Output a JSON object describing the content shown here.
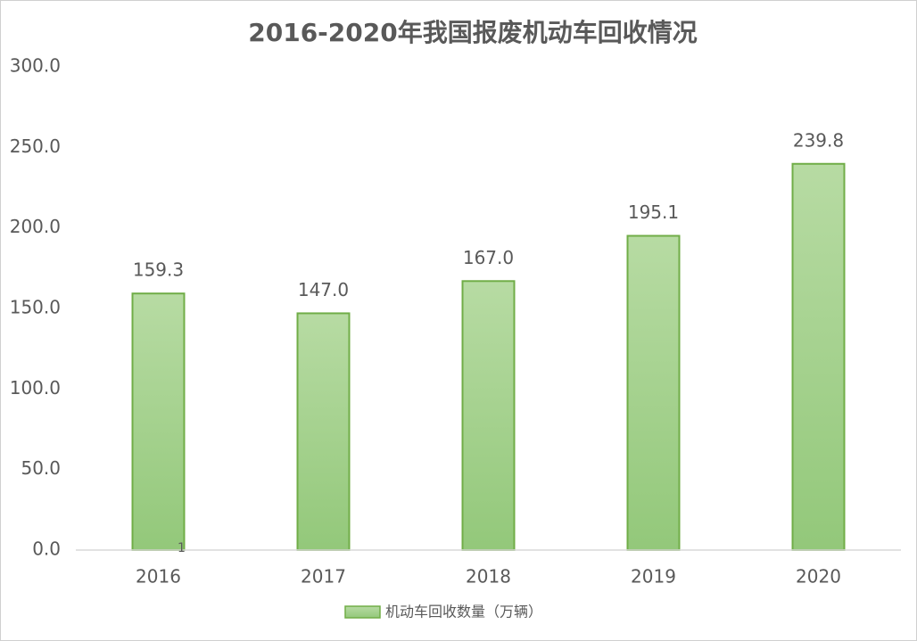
{
  "chart_data": {
    "type": "bar",
    "title": "2016-2020年我国报废机动车回收情况",
    "categories": [
      "2016",
      "2017",
      "2018",
      "2019",
      "2020"
    ],
    "series": [
      {
        "name": "机动车回收数量（万辆）",
        "color": "#a9d18e",
        "edge_color": "#70ad47",
        "values": [
          159.3,
          147.0,
          167.0,
          195.1,
          239.8
        ],
        "value_labels": [
          "159.3",
          "147.0",
          "167.0",
          "195.1",
          "239.8"
        ]
      }
    ],
    "ylim": [
      0,
      300
    ],
    "yticks": [
      {
        "value": 0,
        "label": "0.0"
      },
      {
        "value": 50,
        "label": "50.0"
      },
      {
        "value": 100,
        "label": "100.0"
      },
      {
        "value": 150,
        "label": "150.0"
      },
      {
        "value": 200,
        "label": "200.0"
      },
      {
        "value": 250,
        "label": "250.0"
      },
      {
        "value": 300,
        "label": "300.0"
      }
    ],
    "grid": false,
    "legend": "bottom",
    "annotation": "1"
  }
}
